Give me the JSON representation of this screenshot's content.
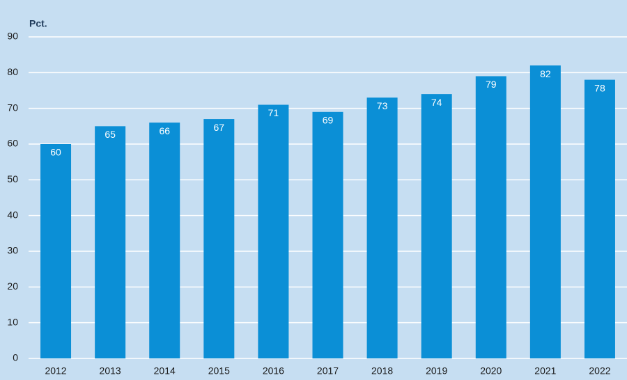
{
  "chart_data": {
    "type": "bar",
    "y_label": "Pct.",
    "categories": [
      "2012",
      "2013",
      "2014",
      "2015",
      "2016",
      "2017",
      "2018",
      "2019",
      "2020",
      "2021",
      "2022"
    ],
    "values": [
      60,
      65,
      66,
      67,
      71,
      69,
      73,
      74,
      79,
      82,
      78
    ],
    "color": "#0b8fd6",
    "ylim": [
      0,
      90
    ],
    "yticks": [
      0,
      10,
      20,
      30,
      40,
      50,
      60,
      70,
      80,
      90
    ],
    "grid": true
  }
}
